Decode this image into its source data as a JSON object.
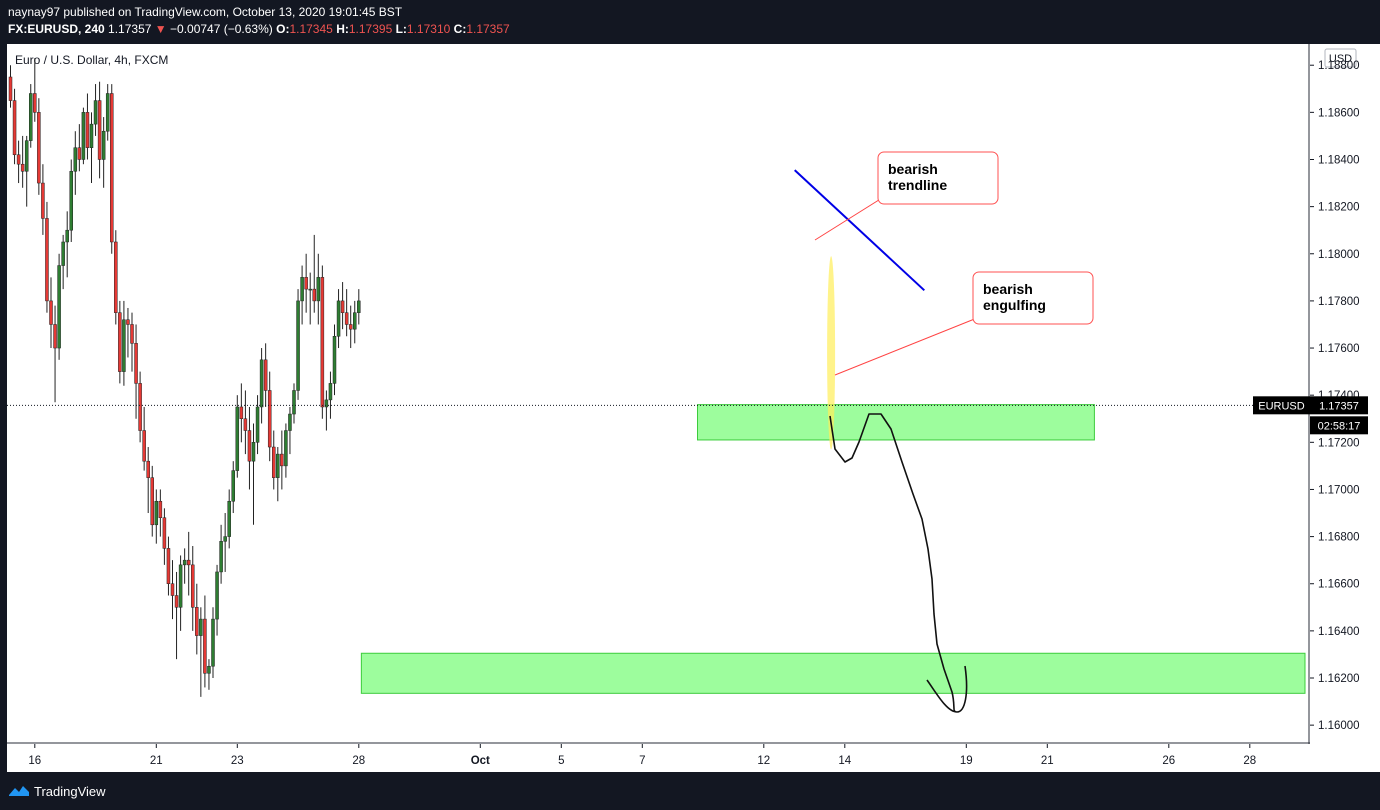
{
  "header": {
    "line1": "naynay97 published on TradingView.com, October 13, 2020 19:01:45 BST",
    "symbol": "FX:EURUSD, 240",
    "last": "1.17357",
    "change_arrow": "▼",
    "change": "−0.00747 (−0.63%)",
    "o_label": "O:",
    "o": "1.17345",
    "h_label": "H:",
    "h": "1.17395",
    "l_label": "L:",
    "l": "1.17310",
    "c_label": "C:",
    "c": "1.17357"
  },
  "footer": {
    "brand": "TradingView"
  },
  "chart_data": {
    "type": "candlestick",
    "title": "Euro / U.S. Dollar, 4h, FXCM",
    "currency": "USD",
    "ylim": [
      1.1592,
      1.1889
    ],
    "y_ticks": [
      "1.18800",
      "1.18600",
      "1.18400",
      "1.18200",
      "1.18000",
      "1.17800",
      "1.17600",
      "1.17400",
      "1.17200",
      "1.17000",
      "1.16800",
      "1.16600",
      "1.16400",
      "1.16200",
      "1.16000"
    ],
    "x_ticks": [
      {
        "label": "16",
        "i": 6
      },
      {
        "label": "21",
        "i": 36
      },
      {
        "label": "23",
        "i": 56
      },
      {
        "label": "28",
        "i": 86
      },
      {
        "label": "Oct",
        "i": 116
      },
      {
        "label": "5",
        "i": 136
      },
      {
        "label": "7",
        "i": 156
      },
      {
        "label": "12",
        "i": 186
      },
      {
        "label": "14",
        "i": 206
      },
      {
        "label": "19",
        "i": 236
      },
      {
        "label": "21",
        "i": 256
      },
      {
        "label": "26",
        "i": 286
      },
      {
        "label": "28",
        "i": 306
      }
    ],
    "price_label": {
      "symbol": "EURUSD",
      "price": "1.17357",
      "countdown": "02:58:17"
    },
    "candles": [
      [
        1.1875,
        1.188,
        1.1862,
        1.1865
      ],
      [
        1.1865,
        1.187,
        1.1838,
        1.1842
      ],
      [
        1.1842,
        1.1848,
        1.183,
        1.1838
      ],
      [
        1.1838,
        1.185,
        1.1828,
        1.1835
      ],
      [
        1.1835,
        1.185,
        1.182,
        1.1848
      ],
      [
        1.1848,
        1.1872,
        1.1845,
        1.1868
      ],
      [
        1.1868,
        1.1883,
        1.1856,
        1.186
      ],
      [
        1.186,
        1.1866,
        1.1825,
        1.183
      ],
      [
        1.183,
        1.1838,
        1.1808,
        1.1815
      ],
      [
        1.1815,
        1.1822,
        1.1775,
        1.178
      ],
      [
        1.178,
        1.179,
        1.176,
        1.177
      ],
      [
        1.177,
        1.1778,
        1.1737,
        1.176
      ],
      [
        1.176,
        1.18,
        1.1755,
        1.1795
      ],
      [
        1.1795,
        1.1808,
        1.1785,
        1.1805
      ],
      [
        1.1805,
        1.1818,
        1.179,
        1.181
      ],
      [
        1.181,
        1.184,
        1.1805,
        1.1835
      ],
      [
        1.1835,
        1.1852,
        1.1825,
        1.1845
      ],
      [
        1.1845,
        1.1855,
        1.1835,
        1.184
      ],
      [
        1.184,
        1.1862,
        1.1838,
        1.186
      ],
      [
        1.186,
        1.1868,
        1.184,
        1.1845
      ],
      [
        1.1845,
        1.186,
        1.183,
        1.1855
      ],
      [
        1.1855,
        1.1872,
        1.185,
        1.1865
      ],
      [
        1.1865,
        1.1873,
        1.1832,
        1.184
      ],
      [
        1.184,
        1.1858,
        1.1828,
        1.1852
      ],
      [
        1.1852,
        1.1872,
        1.1848,
        1.1868
      ],
      [
        1.1868,
        1.1872,
        1.18,
        1.1805
      ],
      [
        1.1805,
        1.181,
        1.177,
        1.1775
      ],
      [
        1.1775,
        1.178,
        1.1745,
        1.175
      ],
      [
        1.175,
        1.178,
        1.1744,
        1.1772
      ],
      [
        1.1772,
        1.1777,
        1.1756,
        1.177
      ],
      [
        1.177,
        1.1775,
        1.175,
        1.1762
      ],
      [
        1.1762,
        1.177,
        1.173,
        1.1745
      ],
      [
        1.1745,
        1.175,
        1.172,
        1.1725
      ],
      [
        1.1725,
        1.1735,
        1.1708,
        1.1712
      ],
      [
        1.1712,
        1.1718,
        1.169,
        1.1705
      ],
      [
        1.1705,
        1.171,
        1.168,
        1.1685
      ],
      [
        1.1685,
        1.17,
        1.1677,
        1.1695
      ],
      [
        1.1695,
        1.17,
        1.168,
        1.1688
      ],
      [
        1.1688,
        1.1692,
        1.1668,
        1.1675
      ],
      [
        1.1675,
        1.168,
        1.1655,
        1.166
      ],
      [
        1.166,
        1.167,
        1.1645,
        1.1655
      ],
      [
        1.1655,
        1.1665,
        1.1628,
        1.165
      ],
      [
        1.165,
        1.1672,
        1.164,
        1.1668
      ],
      [
        1.1668,
        1.1675,
        1.166,
        1.167
      ],
      [
        1.167,
        1.1682,
        1.1655,
        1.1668
      ],
      [
        1.1668,
        1.1676,
        1.164,
        1.165
      ],
      [
        1.165,
        1.166,
        1.163,
        1.1638
      ],
      [
        1.1638,
        1.165,
        1.1612,
        1.1645
      ],
      [
        1.1645,
        1.1655,
        1.1616,
        1.1622
      ],
      [
        1.1622,
        1.1628,
        1.1615,
        1.1625
      ],
      [
        1.1625,
        1.165,
        1.162,
        1.1645
      ],
      [
        1.1645,
        1.1668,
        1.1638,
        1.1665
      ],
      [
        1.1665,
        1.1685,
        1.166,
        1.1678
      ],
      [
        1.1678,
        1.169,
        1.1665,
        1.168
      ],
      [
        1.168,
        1.17,
        1.1675,
        1.1695
      ],
      [
        1.1695,
        1.1712,
        1.169,
        1.1708
      ],
      [
        1.1708,
        1.174,
        1.1705,
        1.1735
      ],
      [
        1.1735,
        1.1745,
        1.172,
        1.173
      ],
      [
        1.173,
        1.1742,
        1.1715,
        1.1725
      ],
      [
        1.1725,
        1.1735,
        1.17,
        1.1712
      ],
      [
        1.1712,
        1.1728,
        1.1685,
        1.172
      ],
      [
        1.172,
        1.174,
        1.1715,
        1.1735
      ],
      [
        1.1735,
        1.176,
        1.1728,
        1.1755
      ],
      [
        1.1755,
        1.1762,
        1.1735,
        1.1742
      ],
      [
        1.1742,
        1.175,
        1.1712,
        1.1718
      ],
      [
        1.1718,
        1.1725,
        1.17,
        1.1705
      ],
      [
        1.1705,
        1.1718,
        1.1695,
        1.1715
      ],
      [
        1.1715,
        1.1725,
        1.17,
        1.171
      ],
      [
        1.171,
        1.1728,
        1.1705,
        1.1725
      ],
      [
        1.1725,
        1.1735,
        1.1715,
        1.1732
      ],
      [
        1.1732,
        1.1745,
        1.1728,
        1.1742
      ],
      [
        1.1742,
        1.1785,
        1.1738,
        1.178
      ],
      [
        1.178,
        1.1795,
        1.177,
        1.179
      ],
      [
        1.179,
        1.18,
        1.1775,
        1.1785
      ],
      [
        1.1785,
        1.1792,
        1.177,
        1.1785
      ],
      [
        1.1785,
        1.1808,
        1.1775,
        1.178
      ],
      [
        1.178,
        1.18,
        1.177,
        1.179
      ],
      [
        1.179,
        1.1795,
        1.173,
        1.1735
      ],
      [
        1.1735,
        1.1742,
        1.1725,
        1.1738
      ],
      [
        1.1738,
        1.175,
        1.173,
        1.1745
      ],
      [
        1.1745,
        1.177,
        1.174,
        1.1765
      ],
      [
        1.1765,
        1.1785,
        1.176,
        1.178
      ],
      [
        1.178,
        1.1788,
        1.1768,
        1.1775
      ],
      [
        1.1775,
        1.1785,
        1.1765,
        1.177
      ],
      [
        1.177,
        1.1778,
        1.176,
        1.1768
      ],
      [
        1.1768,
        1.178,
        1.1762,
        1.1775
      ],
      [
        1.1775,
        1.1785,
        1.177,
        1.178
      ]
    ],
    "annotations": {
      "trendline": {
        "start": [
          194,
          1.18355
        ],
        "end": [
          226,
          1.17845
        ],
        "color": "#0000e6"
      },
      "zone_upper": {
        "start_i": 170,
        "end_i": 268,
        "from": 1.1721,
        "to": 1.1736,
        "color": "#7cfc7c"
      },
      "zone_lower": {
        "start_i": 87,
        "end_i": 320,
        "from": 1.16135,
        "to": 1.16305,
        "color": "#7cfc7c"
      },
      "callout_trendline": {
        "text": [
          "bearish",
          "trendline"
        ]
      },
      "callout_engulfing": {
        "text": [
          "bearish",
          "engulfing"
        ]
      }
    }
  }
}
